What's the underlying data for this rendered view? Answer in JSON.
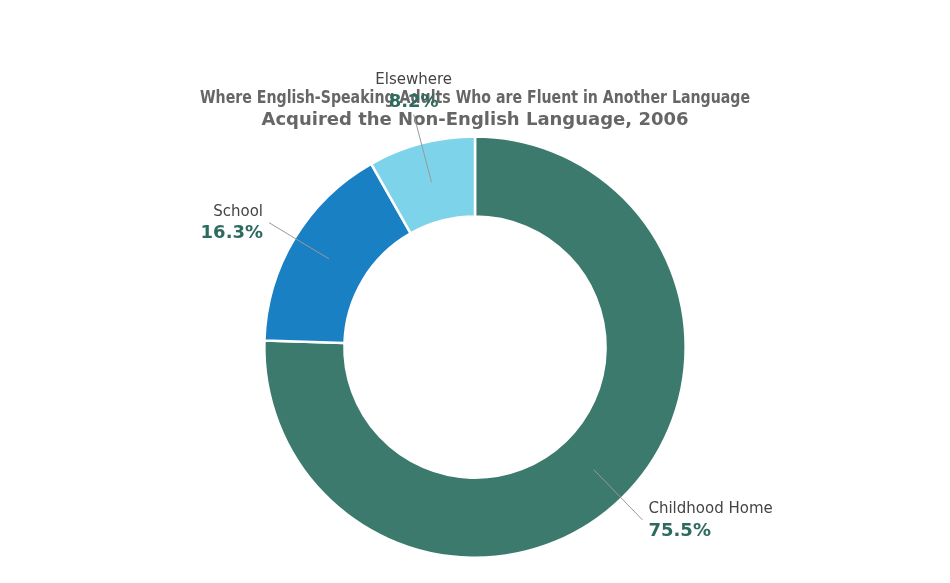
{
  "chart_data": {
    "type": "doughnut",
    "title": [
      "Where English-Speaking Adults Who are Fluent in Another Language",
      "Acquired the Non-English Language, 2006"
    ],
    "categories": [
      "Childhood Home",
      "School",
      "Elsewhere"
    ],
    "values": [
      75.5,
      16.3,
      8.2
    ],
    "value_labels": [
      "75.5%",
      "16.3%",
      "8.2%"
    ],
    "colors": [
      "#3d7a6e",
      "#1a80c4",
      "#7dd4ea"
    ],
    "data_labels": true,
    "legend": false
  }
}
